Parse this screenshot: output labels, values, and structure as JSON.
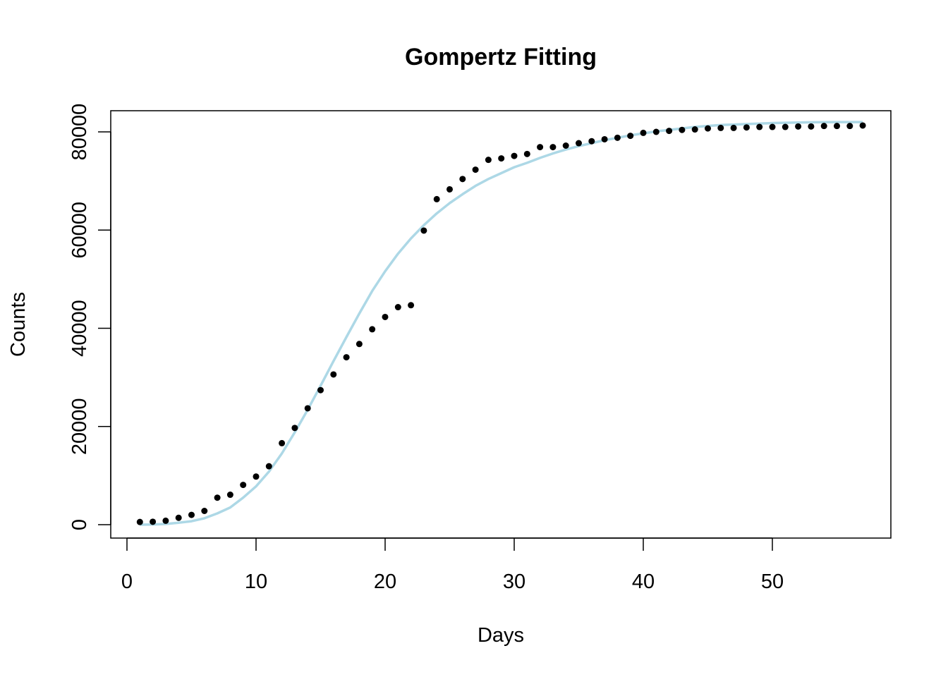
{
  "chart_data": {
    "type": "scatter",
    "title": "Gompertz Fitting",
    "xlabel": "Days",
    "ylabel": "Counts",
    "xlim": [
      0,
      57
    ],
    "ylim": [
      0,
      82000
    ],
    "x_ticks": [
      0,
      10,
      20,
      30,
      40,
      50
    ],
    "y_ticks": [
      0,
      20000,
      40000,
      60000,
      80000
    ],
    "x_tick_labels": [
      "0",
      "10",
      "20",
      "30",
      "40",
      "50"
    ],
    "y_tick_labels": [
      "0",
      "20000",
      "40000",
      "60000",
      "80000"
    ],
    "grid": false,
    "legend": "none",
    "series": [
      {
        "kind": "points",
        "color": "#000000",
        "x": [
          1,
          2,
          3,
          4,
          5,
          6,
          7,
          8,
          9,
          10,
          11,
          12,
          13,
          14,
          15,
          16,
          17,
          18,
          19,
          20,
          21,
          22,
          23,
          24,
          25,
          26,
          27,
          28,
          29,
          30,
          31,
          32,
          33,
          34,
          35,
          36,
          37,
          38,
          39,
          40,
          41,
          42,
          43,
          44,
          45,
          46,
          47,
          48,
          49,
          50,
          51,
          52,
          53,
          54,
          55,
          56,
          57
        ],
        "y": [
          550,
          600,
          800,
          1400,
          2000,
          2800,
          5500,
          6100,
          8100,
          9800,
          11900,
          16600,
          19700,
          23700,
          27400,
          30600,
          34100,
          36800,
          39800,
          42300,
          44300,
          44700,
          59900,
          66300,
          68300,
          70400,
          72300,
          74300,
          74600,
          75100,
          75500,
          76900,
          76900,
          77200,
          77700,
          78100,
          78500,
          78800,
          79200,
          79800,
          80000,
          80200,
          80400,
          80500,
          80700,
          80800,
          80800,
          80900,
          81000,
          81000,
          81000,
          81100,
          81100,
          81200,
          81200,
          81200,
          81300
        ]
      },
      {
        "kind": "fitted-line",
        "color": "#add8e6",
        "x": [
          1,
          2,
          3,
          4,
          5,
          6,
          7,
          8,
          9,
          10,
          11,
          12,
          13,
          14,
          15,
          16,
          17,
          18,
          19,
          20,
          21,
          22,
          23,
          24,
          25,
          26,
          27,
          28,
          29,
          30,
          31,
          32,
          33,
          34,
          35,
          36,
          37,
          38,
          39,
          40,
          41,
          42,
          43,
          44,
          45,
          46,
          47,
          48,
          49,
          50,
          51,
          52,
          53,
          54,
          55,
          56,
          57
        ],
        "y": [
          0,
          30,
          150,
          400,
          700,
          1300,
          2300,
          3500,
          5500,
          7800,
          10800,
          14500,
          18800,
          23400,
          28300,
          33300,
          38200,
          43000,
          47600,
          51600,
          55200,
          58300,
          61000,
          63400,
          65500,
          67300,
          69000,
          70400,
          71600,
          72800,
          73700,
          74700,
          75600,
          76400,
          77100,
          77700,
          78300,
          78800,
          79300,
          79700,
          80100,
          80400,
          80700,
          81000,
          81200,
          81400,
          81500,
          81600,
          81700,
          81800,
          81850,
          81900,
          81950,
          81980,
          82000,
          82000,
          82000
        ]
      }
    ]
  }
}
